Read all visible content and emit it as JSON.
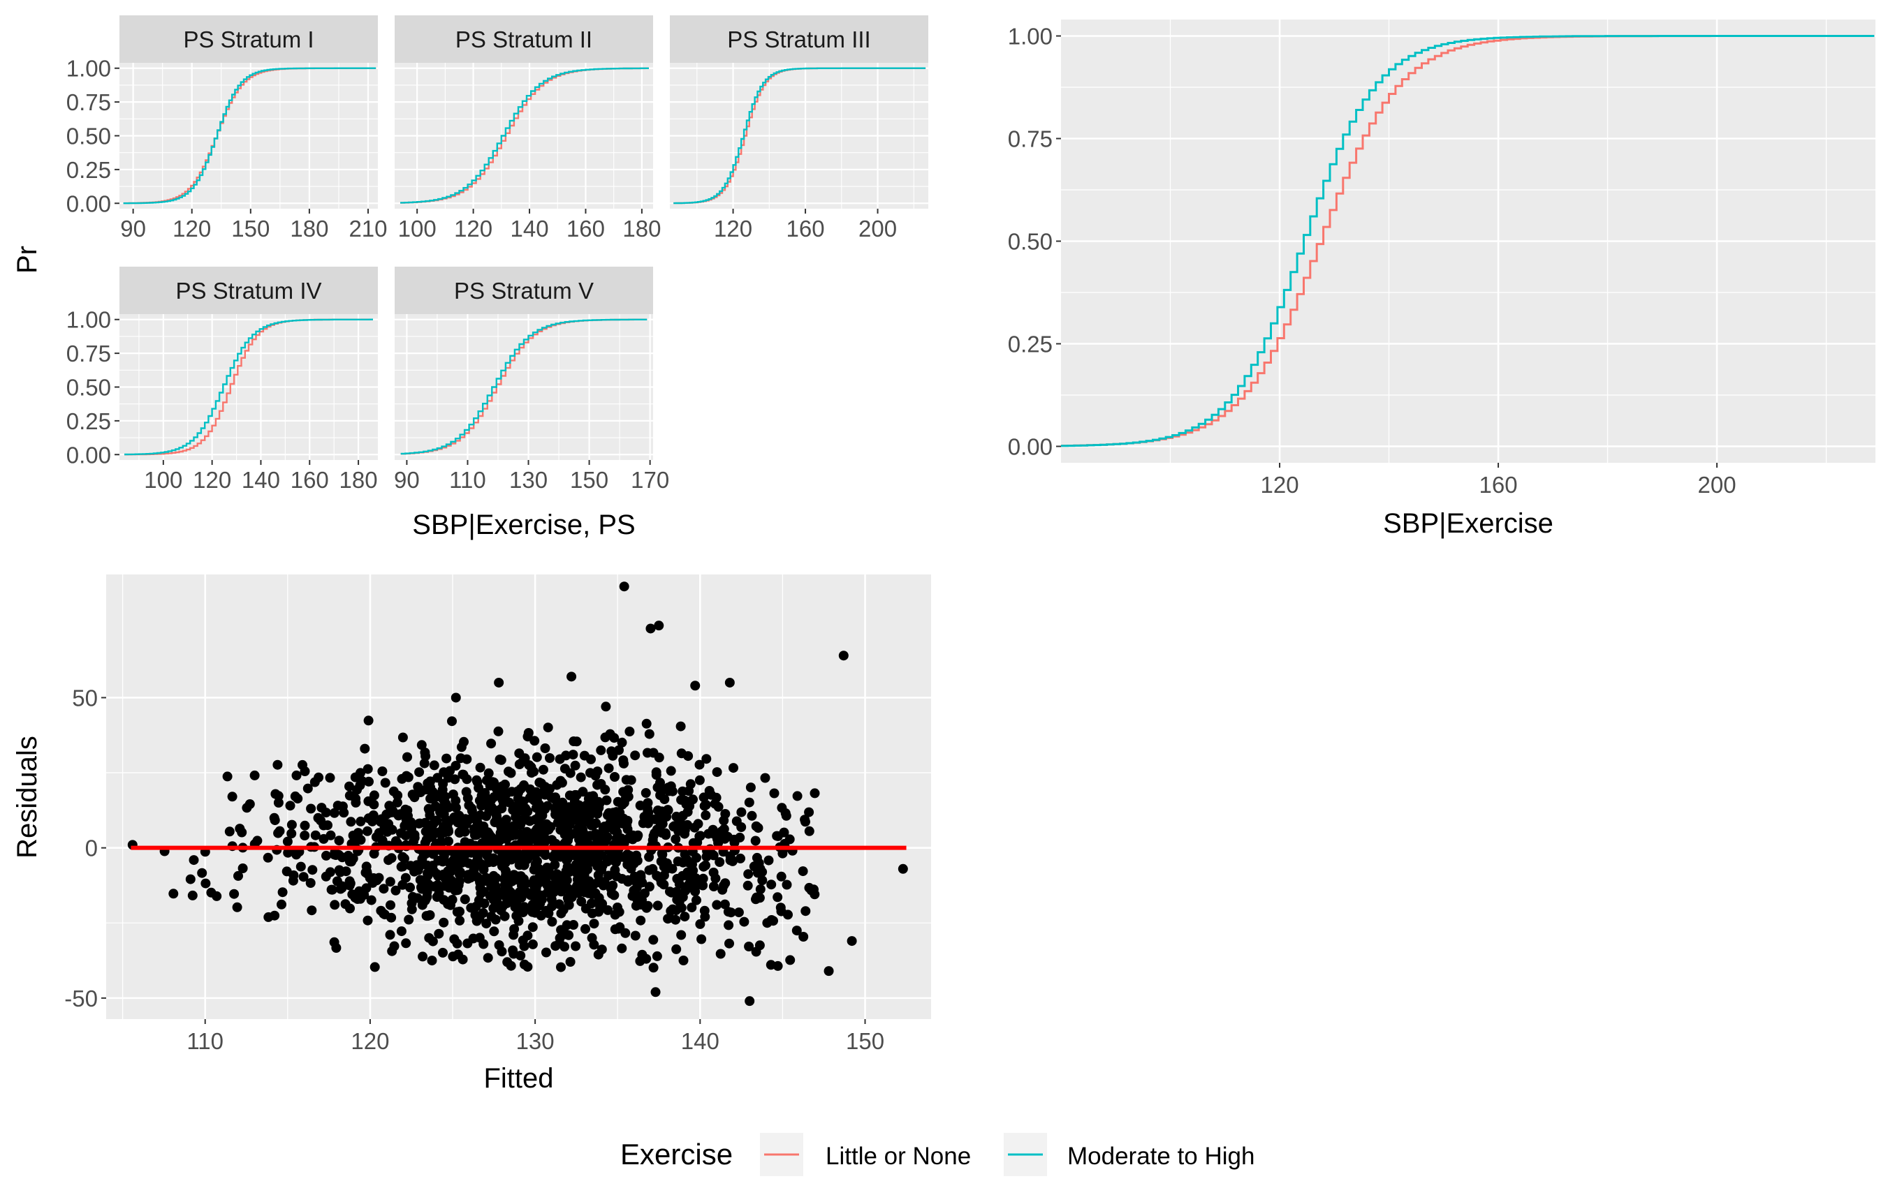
{
  "colors": {
    "little_or_none": "#F8766D",
    "moderate_to_high": "#00BFC4",
    "panel_bg": "#EBEBEB",
    "grid": "#FFFFFF",
    "strip_bg": "#D9D9D9",
    "axis_text": "#4D4D4D",
    "point": "#000000",
    "fit_line": "#FF0000"
  },
  "legend": {
    "title": "Exercise",
    "items": [
      {
        "label": "Little or None",
        "color": "#F8766D"
      },
      {
        "label": "Moderate to High",
        "color": "#00BFC4"
      }
    ]
  },
  "chart_data": [
    {
      "type": "line",
      "subtype": "ecdf-facets",
      "ylabel": "Pr",
      "xlabel": "SBP|Exercise, PS",
      "y_ticks": [
        "0.00",
        "0.25",
        "0.50",
        "0.75",
        "1.00"
      ],
      "grid": true,
      "panels": [
        {
          "title": "PS Stratum I",
          "xlim": [
            83,
            215
          ],
          "x_ticks": [
            90,
            120,
            150,
            180,
            210
          ],
          "series": [
            {
              "name": "Little or None",
              "median": 132,
              "spread": 11
            },
            {
              "name": "Moderate to High",
              "median": 132,
              "spread": 10
            }
          ]
        },
        {
          "title": "PS Stratum II",
          "xlim": [
            92,
            184
          ],
          "x_ticks": [
            100,
            120,
            140,
            160,
            180
          ],
          "series": [
            {
              "name": "Little or None",
              "median": 131,
              "spread": 11
            },
            {
              "name": "Moderate to High",
              "median": 130,
              "spread": 11
            }
          ]
        },
        {
          "title": "PS Stratum III",
          "xlim": [
            85,
            228
          ],
          "x_ticks": [
            120,
            160,
            200
          ],
          "series": [
            {
              "name": "Little or None",
              "median": 126,
              "spread": 9
            },
            {
              "name": "Moderate to High",
              "median": 125,
              "spread": 9
            }
          ]
        },
        {
          "title": "PS Stratum IV",
          "xlim": [
            82,
            188
          ],
          "x_ticks": [
            100,
            120,
            140,
            160,
            180
          ],
          "series": [
            {
              "name": "Little or None",
              "median": 127,
              "spread": 9
            },
            {
              "name": "Moderate to High",
              "median": 124,
              "spread": 10
            }
          ]
        },
        {
          "title": "PS Stratum V",
          "xlim": [
            86,
            171
          ],
          "x_ticks": [
            90,
            110,
            130,
            150,
            170
          ],
          "series": [
            {
              "name": "Little or None",
              "median": 119,
              "spread": 10
            },
            {
              "name": "Moderate to High",
              "median": 118,
              "spread": 10
            }
          ]
        }
      ]
    },
    {
      "type": "line",
      "subtype": "ecdf",
      "xlabel": "SBP|Exercise",
      "xlim": [
        80,
        229
      ],
      "ylim": [
        -0.04,
        1.04
      ],
      "x_ticks": [
        120,
        160,
        200
      ],
      "y_ticks": [
        "0.00",
        "0.25",
        "0.50",
        "0.75",
        "1.00"
      ],
      "grid": true,
      "series": [
        {
          "name": "Little or None",
          "median": 127,
          "spread": 12
        },
        {
          "name": "Moderate to High",
          "median": 124,
          "spread": 11
        }
      ]
    },
    {
      "type": "scatter",
      "xlabel": "Fitted",
      "ylabel": "Residuals",
      "xlim": [
        104,
        154
      ],
      "ylim": [
        -57,
        91
      ],
      "x_ticks": [
        110,
        120,
        130,
        140,
        150
      ],
      "y_ticks": [
        "-50",
        "0",
        "50"
      ],
      "grid": true,
      "fit_line": {
        "x": [
          105.5,
          152.5
        ],
        "y": [
          0,
          0
        ]
      },
      "notable_points": [
        {
          "x": 135.4,
          "y": 87
        },
        {
          "x": 137,
          "y": 73
        },
        {
          "x": 137.5,
          "y": 74
        },
        {
          "x": 148.7,
          "y": 64
        },
        {
          "x": 152.3,
          "y": -7
        },
        {
          "x": 149.2,
          "y": -31
        },
        {
          "x": 147.8,
          "y": -41
        },
        {
          "x": 143.0,
          "y": -51
        },
        {
          "x": 137.3,
          "y": -48
        },
        {
          "x": 105.6,
          "y": 1
        },
        {
          "x": 141.8,
          "y": 55
        },
        {
          "x": 139.7,
          "y": 54
        },
        {
          "x": 127.8,
          "y": 55
        },
        {
          "x": 132.2,
          "y": 57
        },
        {
          "x": 125.2,
          "y": 50
        }
      ],
      "cloud": {
        "n": 1500,
        "x_mean": 130,
        "x_sd": 7.5,
        "y_sd": 15.5,
        "seed": 7
      }
    }
  ]
}
